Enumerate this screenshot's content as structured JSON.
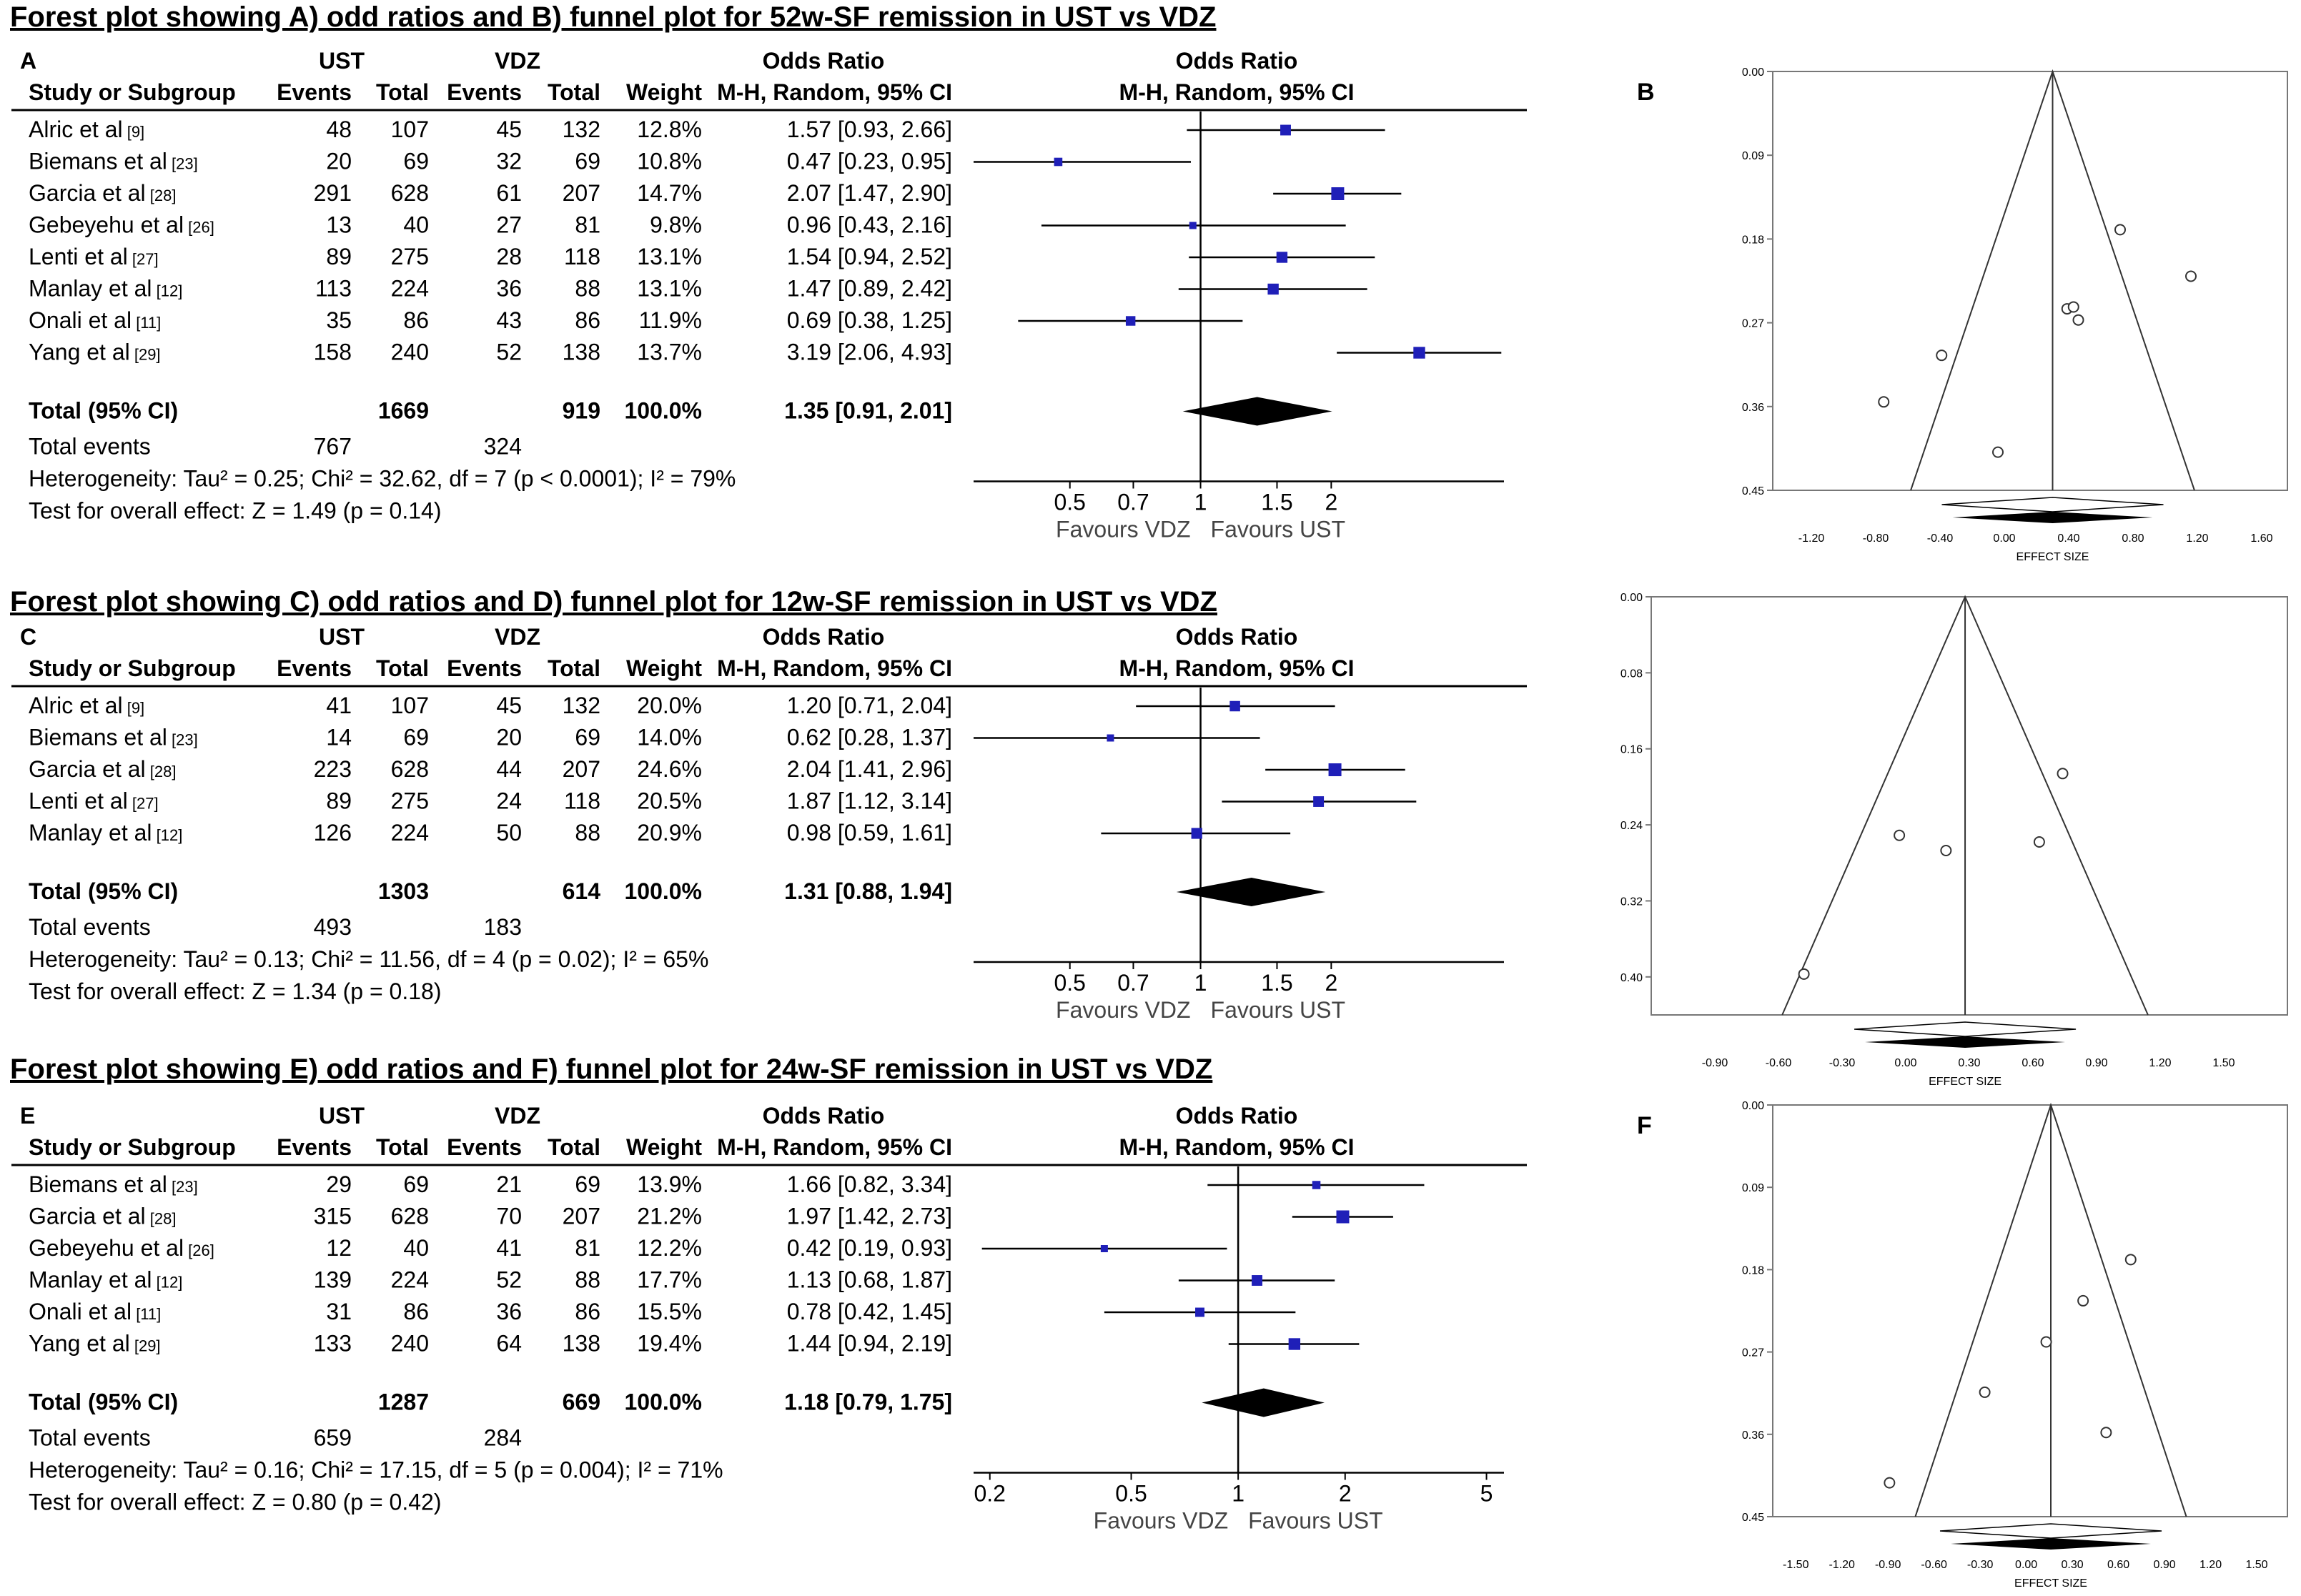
{
  "colors": {
    "square": "#1f1fb8",
    "line": "#000000",
    "diamond": "#000000"
  },
  "headers": {
    "ust": "UST",
    "vdz": "VDZ",
    "odds_ratio": "Odds Ratio",
    "study": "Study or Subgroup",
    "events": "Events",
    "total": "Total",
    "weight": "Weight",
    "mh_col": "M-H, Random, 95% CI",
    "favours_left": "Favours VDZ",
    "favours_right": "Favours UST",
    "total_ci": "Total (95% CI)",
    "total_events": "Total events"
  },
  "funnel_axis_label": "EFFECT SIZE",
  "chart_data": [
    {
      "type": "forest",
      "title": "Forest plot showing A) odd ratios and B) funnel plot for 52w-SF remission in UST vs VDZ",
      "panel": "A",
      "scale": "log",
      "xlim": [
        0.3,
        5
      ],
      "xticks": [
        "0.5",
        "0.7",
        "1",
        "1.5",
        "2"
      ],
      "studies": [
        {
          "name": "Alric et al",
          "ref": "[9]",
          "ust_events": "48",
          "ust_total": "107",
          "vdz_events": "45",
          "vdz_total": "132",
          "weight": "12.8%",
          "or_text": "1.57 [0.93, 2.66]",
          "or": 1.57,
          "lo": 0.93,
          "hi": 2.66
        },
        {
          "name": "Biemans et al",
          "ref": "[23]",
          "ust_events": "20",
          "ust_total": "69",
          "vdz_events": "32",
          "vdz_total": "69",
          "weight": "10.8%",
          "or_text": "0.47 [0.23, 0.95]",
          "or": 0.47,
          "lo": 0.23,
          "hi": 0.95
        },
        {
          "name": "Garcia et al",
          "ref": "[28]",
          "ust_events": "291",
          "ust_total": "628",
          "vdz_events": "61",
          "vdz_total": "207",
          "weight": "14.7%",
          "or_text": "2.07 [1.47, 2.90]",
          "or": 2.07,
          "lo": 1.47,
          "hi": 2.9
        },
        {
          "name": "Gebeyehu et al",
          "ref": "[26]",
          "ust_events": "13",
          "ust_total": "40",
          "vdz_events": "27",
          "vdz_total": "81",
          "weight": "9.8%",
          "or_text": "0.96 [0.43, 2.16]",
          "or": 0.96,
          "lo": 0.43,
          "hi": 2.16
        },
        {
          "name": "Lenti et al",
          "ref": "[27]",
          "ust_events": "89",
          "ust_total": "275",
          "vdz_events": "28",
          "vdz_total": "118",
          "weight": "13.1%",
          "or_text": "1.54 [0.94, 2.52]",
          "or": 1.54,
          "lo": 0.94,
          "hi": 2.52
        },
        {
          "name": "Manlay et al",
          "ref": "[12]",
          "ust_events": "113",
          "ust_total": "224",
          "vdz_events": "36",
          "vdz_total": "88",
          "weight": "13.1%",
          "or_text": "1.47 [0.89, 2.42]",
          "or": 1.47,
          "lo": 0.89,
          "hi": 2.42
        },
        {
          "name": "Onali et al",
          "ref": "[11]",
          "ust_events": "35",
          "ust_total": "86",
          "vdz_events": "43",
          "vdz_total": "86",
          "weight": "11.9%",
          "or_text": "0.69 [0.38, 1.25]",
          "or": 0.69,
          "lo": 0.38,
          "hi": 1.25
        },
        {
          "name": "Yang et al",
          "ref": "[29]",
          "ust_events": "158",
          "ust_total": "240",
          "vdz_events": "52",
          "vdz_total": "138",
          "weight": "13.7%",
          "or_text": "3.19 [2.06, 4.93]",
          "or": 3.19,
          "lo": 2.06,
          "hi": 4.93
        }
      ],
      "total": {
        "ust_total": "1669",
        "vdz_total": "919",
        "weight": "100.0%",
        "or_text": "1.35 [0.91, 2.01]",
        "or": 1.35,
        "lo": 0.91,
        "hi": 2.01
      },
      "total_events": {
        "ust": "767",
        "vdz": "324"
      },
      "heterogeneity": "Heterogeneity: Tau² = 0.25; Chi² = 32.62, df = 7 (p < 0.0001); I² = 79%",
      "overall": "Test for overall effect: Z = 1.49 (p = 0.14)"
    },
    {
      "type": "scatter",
      "panel": "B",
      "xlabel": "EFFECT SIZE",
      "xlim": [
        -1.44,
        1.76
      ],
      "xticks": [
        "-1.20",
        "-0.80",
        "-0.40",
        "0.00",
        "0.40",
        "0.80",
        "1.20",
        "1.60"
      ],
      "ylim": [
        0,
        0.45
      ],
      "yticks": [
        "0.00",
        "0.09",
        "0.18",
        "0.27",
        "0.36",
        "0.45"
      ],
      "y_inverted": true,
      "center": 0.3,
      "points": [
        [
          0.72,
          0.17
        ],
        [
          1.16,
          0.22
        ],
        [
          0.39,
          0.255
        ],
        [
          0.43,
          0.253
        ],
        [
          0.46,
          0.267
        ],
        [
          -0.39,
          0.305
        ],
        [
          -0.75,
          0.355
        ],
        [
          -0.04,
          0.409
        ]
      ],
      "diamond_center": 0.3
    },
    {
      "type": "forest",
      "title": "Forest plot showing C) odd ratios and D) funnel plot for 12w-SF remission in UST vs VDZ",
      "panel": "C",
      "scale": "log",
      "xlim": [
        0.3,
        5
      ],
      "xticks": [
        "0.5",
        "0.7",
        "1",
        "1.5",
        "2"
      ],
      "studies": [
        {
          "name": "Alric et al",
          "ref": "[9]",
          "ust_events": "41",
          "ust_total": "107",
          "vdz_events": "45",
          "vdz_total": "132",
          "weight": "20.0%",
          "or_text": "1.20 [0.71, 2.04]",
          "or": 1.2,
          "lo": 0.71,
          "hi": 2.04
        },
        {
          "name": "Biemans et al",
          "ref": "[23]",
          "ust_events": "14",
          "ust_total": "69",
          "vdz_events": "20",
          "vdz_total": "69",
          "weight": "14.0%",
          "or_text": "0.62 [0.28, 1.37]",
          "or": 0.62,
          "lo": 0.28,
          "hi": 1.37
        },
        {
          "name": "Garcia et al",
          "ref": "[28]",
          "ust_events": "223",
          "ust_total": "628",
          "vdz_events": "44",
          "vdz_total": "207",
          "weight": "24.6%",
          "or_text": "2.04 [1.41, 2.96]",
          "or": 2.04,
          "lo": 1.41,
          "hi": 2.96
        },
        {
          "name": "Lenti et al",
          "ref": "[27]",
          "ust_events": "89",
          "ust_total": "275",
          "vdz_events": "24",
          "vdz_total": "118",
          "weight": "20.5%",
          "or_text": "1.87 [1.12, 3.14]",
          "or": 1.87,
          "lo": 1.12,
          "hi": 3.14
        },
        {
          "name": "Manlay et al",
          "ref": "[12]",
          "ust_events": "126",
          "ust_total": "224",
          "vdz_events": "50",
          "vdz_total": "88",
          "weight": "20.9%",
          "or_text": "0.98 [0.59, 1.61]",
          "or": 0.98,
          "lo": 0.59,
          "hi": 1.61
        }
      ],
      "total": {
        "ust_total": "1303",
        "vdz_total": "614",
        "weight": "100.0%",
        "or_text": "1.31 [0.88, 1.94]",
        "or": 1.31,
        "lo": 0.88,
        "hi": 1.94
      },
      "total_events": {
        "ust": "493",
        "vdz": "183"
      },
      "heterogeneity": "Heterogeneity: Tau² = 0.13; Chi² = 11.56, df = 4 (p = 0.02); I² = 65%",
      "overall": "Test for overall effect: Z = 1.34 (p = 0.18)"
    },
    {
      "type": "scatter",
      "panel": "D",
      "xlabel": "EFFECT SIZE",
      "xlim": [
        -1.2,
        1.8
      ],
      "xticks": [
        "-0.90",
        "-0.60",
        "-0.30",
        "0.00",
        "0.30",
        "0.60",
        "0.90",
        "1.20",
        "1.50"
      ],
      "ylim": [
        0,
        0.44
      ],
      "yticks": [
        "0.00",
        "0.08",
        "0.16",
        "0.24",
        "0.32",
        "0.40"
      ],
      "y_inverted": true,
      "center": 0.28,
      "points": [
        [
          0.74,
          0.186
        ],
        [
          -0.03,
          0.251
        ],
        [
          0.19,
          0.267
        ],
        [
          0.63,
          0.258
        ],
        [
          -0.48,
          0.397
        ]
      ],
      "diamond_center": 0.28
    },
    {
      "type": "forest",
      "title": "Forest plot showing E) odd ratios and F) funnel plot for 24w-SF remission in UST vs VDZ",
      "panel": "E",
      "scale": "log",
      "xlim": [
        0.18,
        5.6
      ],
      "xticks": [
        "0.2",
        "0.5",
        "1",
        "2",
        "5"
      ],
      "studies": [
        {
          "name": "Biemans et al",
          "ref": "[23]",
          "ust_events": "29",
          "ust_total": "69",
          "vdz_events": "21",
          "vdz_total": "69",
          "weight": "13.9%",
          "or_text": "1.66 [0.82, 3.34]",
          "or": 1.66,
          "lo": 0.82,
          "hi": 3.34
        },
        {
          "name": "Garcia et al",
          "ref": "[28]",
          "ust_events": "315",
          "ust_total": "628",
          "vdz_events": "70",
          "vdz_total": "207",
          "weight": "21.2%",
          "or_text": "1.97 [1.42, 2.73]",
          "or": 1.97,
          "lo": 1.42,
          "hi": 2.73
        },
        {
          "name": "Gebeyehu et al",
          "ref": "[26]",
          "ust_events": "12",
          "ust_total": "40",
          "vdz_events": "41",
          "vdz_total": "81",
          "weight": "12.2%",
          "or_text": "0.42 [0.19, 0.93]",
          "or": 0.42,
          "lo": 0.19,
          "hi": 0.93
        },
        {
          "name": "Manlay et al",
          "ref": "[12]",
          "ust_events": "139",
          "ust_total": "224",
          "vdz_events": "52",
          "vdz_total": "88",
          "weight": "17.7%",
          "or_text": "1.13 [0.68, 1.87]",
          "or": 1.13,
          "lo": 0.68,
          "hi": 1.87
        },
        {
          "name": "Onali et al",
          "ref": "[11]",
          "ust_events": "31",
          "ust_total": "86",
          "vdz_events": "36",
          "vdz_total": "86",
          "weight": "15.5%",
          "or_text": "0.78 [0.42, 1.45]",
          "or": 0.78,
          "lo": 0.42,
          "hi": 1.45
        },
        {
          "name": "Yang et al",
          "ref": "[29]",
          "ust_events": "133",
          "ust_total": "240",
          "vdz_events": "64",
          "vdz_total": "138",
          "weight": "19.4%",
          "or_text": "1.44 [0.94, 2.19]",
          "or": 1.44,
          "lo": 0.94,
          "hi": 2.19
        }
      ],
      "total": {
        "ust_total": "1287",
        "vdz_total": "669",
        "weight": "100.0%",
        "or_text": "1.18 [0.79, 1.75]",
        "or": 1.18,
        "lo": 0.79,
        "hi": 1.75
      },
      "total_events": {
        "ust": "659",
        "vdz": "284"
      },
      "heterogeneity": "Heterogeneity: Tau² = 0.16; Chi² = 17.15, df = 5 (p = 0.004); I² = 71%",
      "overall": "Test for overall effect: Z = 0.80 (p = 0.42)"
    },
    {
      "type": "scatter",
      "panel": "F",
      "xlabel": "EFFECT SIZE",
      "xlim": [
        -1.65,
        1.7
      ],
      "xticks": [
        "-1.50",
        "-1.20",
        "-0.90",
        "-0.60",
        "-0.30",
        "0.00",
        "0.30",
        "0.60",
        "0.90",
        "1.20",
        "1.50"
      ],
      "ylim": [
        0,
        0.45
      ],
      "yticks": [
        "0.00",
        "0.09",
        "0.18",
        "0.27",
        "0.36",
        "0.45"
      ],
      "y_inverted": true,
      "center": 0.16,
      "points": [
        [
          0.68,
          0.169
        ],
        [
          0.37,
          0.214
        ],
        [
          0.13,
          0.259
        ],
        [
          -0.27,
          0.314
        ],
        [
          0.52,
          0.358
        ],
        [
          -0.89,
          0.413
        ]
      ],
      "diamond_center": 0.16
    }
  ]
}
